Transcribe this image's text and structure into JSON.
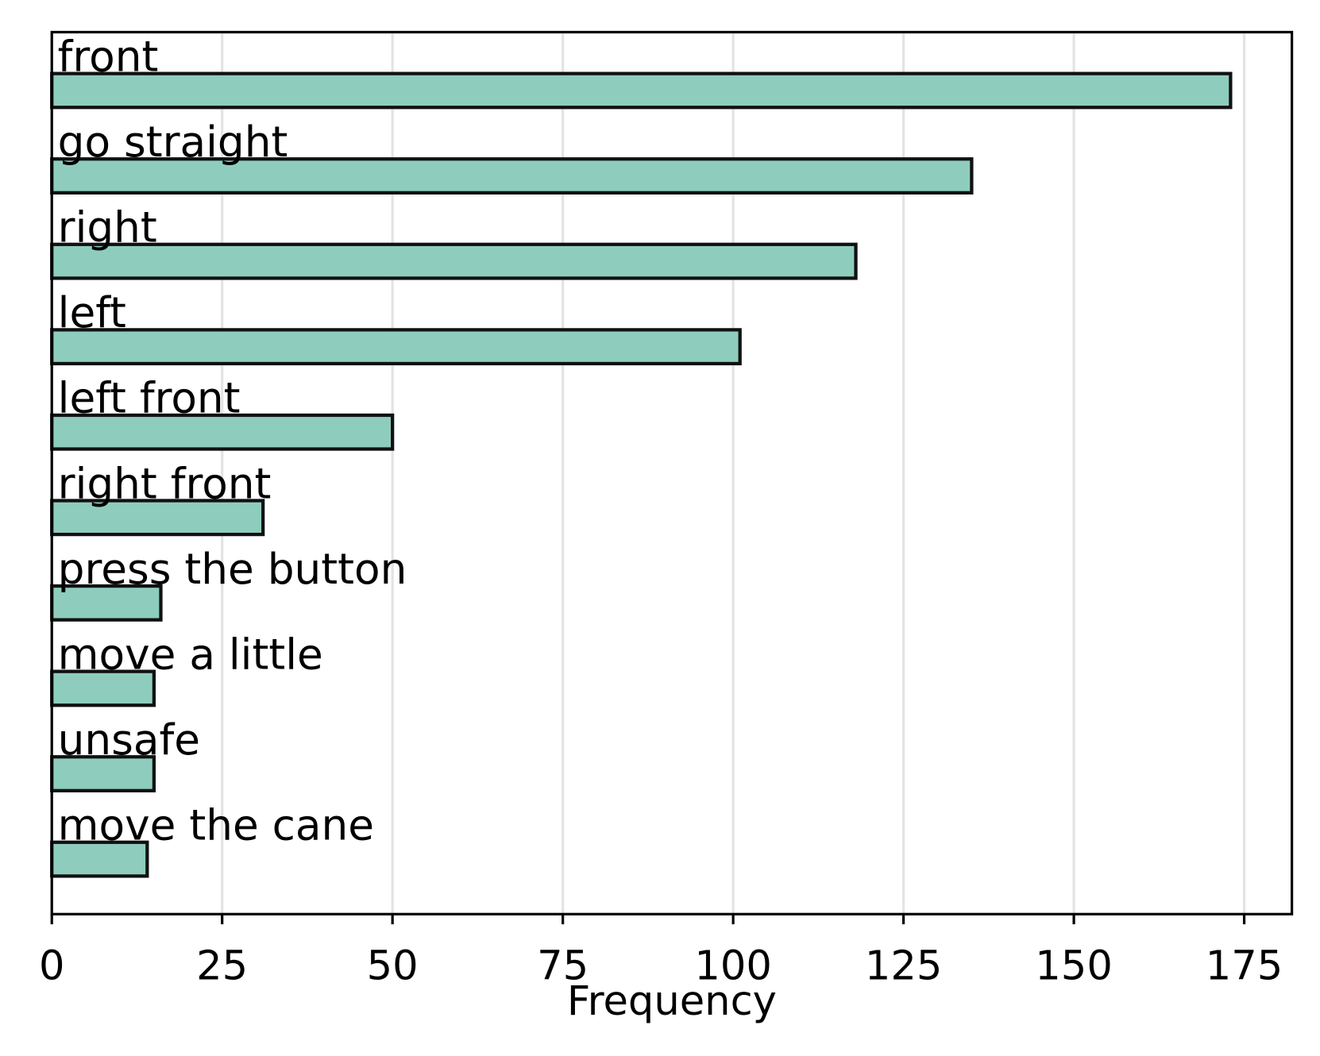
{
  "chart_data": {
    "type": "barh",
    "categories": [
      "front",
      "go straight",
      "right",
      "left",
      "left front",
      "right front",
      "press the button",
      "move a little",
      "unsafe",
      "move the cane"
    ],
    "values": [
      173,
      135,
      118,
      101,
      50,
      31,
      16,
      15,
      15,
      14
    ],
    "color": "#8ecdbe",
    "xlabel": "Frequency",
    "xlim": [
      0,
      182
    ],
    "xticks": [
      0,
      25,
      50,
      75,
      100,
      125,
      150,
      175
    ],
    "grid": true
  }
}
